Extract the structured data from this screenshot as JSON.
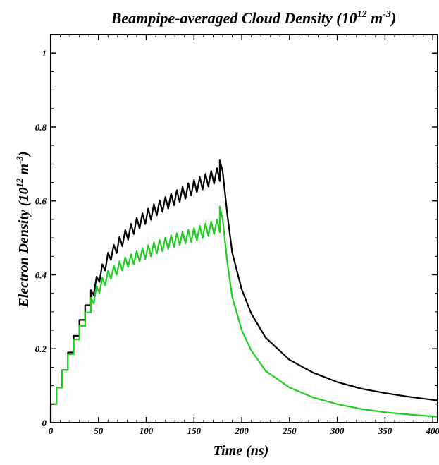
{
  "chart_data": {
    "type": "line",
    "title": {
      "main": "Beampipe-averaged Cloud Density (10",
      "sup1": "12",
      "mid": " m",
      "sup2": "-3",
      "end": ")"
    },
    "xlabel": "Time (ns)",
    "ylabel": {
      "main": "Electron Density (10",
      "sup1": "12",
      "mid": " m",
      "sup2": "-3",
      "end": ")"
    },
    "xlim": [
      0,
      405
    ],
    "ylim": [
      0,
      1.05
    ],
    "x_ticks": [
      0,
      50,
      100,
      150,
      200,
      250,
      300,
      350,
      400
    ],
    "y_ticks": [
      0,
      0.2,
      0.4,
      0.6,
      0.8,
      1
    ],
    "x_tick_labels": [
      "0",
      "50",
      "100",
      "150",
      "200",
      "250",
      "300",
      "350",
      "400"
    ],
    "y_tick_labels": [
      "0",
      "0.2",
      "0.4",
      "0.6",
      "0.8",
      "1"
    ],
    "grid": false,
    "series": [
      {
        "color": "#000000",
        "bunch_spacing_ns": 6,
        "fill_end_ns": 177,
        "envelope": [
          [
            0,
            0.05
          ],
          [
            6,
            0.095
          ],
          [
            12,
            0.143
          ],
          [
            18,
            0.19
          ],
          [
            24,
            0.235
          ],
          [
            30,
            0.278
          ],
          [
            36,
            0.318
          ],
          [
            42,
            0.352
          ],
          [
            50,
            0.4
          ],
          [
            60,
            0.45
          ],
          [
            75,
            0.5
          ],
          [
            90,
            0.54
          ],
          [
            110,
            0.58
          ],
          [
            130,
            0.61
          ],
          [
            150,
            0.64
          ],
          [
            165,
            0.66
          ],
          [
            177,
            0.675
          ]
        ],
        "ripple": [
          [
            30,
            0.01
          ],
          [
            50,
            0.015
          ],
          [
            70,
            0.025
          ],
          [
            100,
            0.03
          ],
          [
            177,
            0.035
          ]
        ],
        "decay": [
          [
            177,
            0.71
          ],
          [
            180,
            0.68
          ],
          [
            185,
            0.56
          ],
          [
            190,
            0.46
          ],
          [
            200,
            0.36
          ],
          [
            210,
            0.295
          ],
          [
            225,
            0.23
          ],
          [
            250,
            0.17
          ],
          [
            275,
            0.135
          ],
          [
            300,
            0.11
          ],
          [
            325,
            0.092
          ],
          [
            350,
            0.08
          ],
          [
            375,
            0.07
          ],
          [
            405,
            0.06
          ]
        ]
      },
      {
        "color": "#22cc22",
        "bunch_spacing_ns": 6,
        "fill_end_ns": 177,
        "envelope": [
          [
            0,
            0.05
          ],
          [
            6,
            0.095
          ],
          [
            12,
            0.143
          ],
          [
            18,
            0.185
          ],
          [
            24,
            0.225
          ],
          [
            30,
            0.262
          ],
          [
            36,
            0.298
          ],
          [
            42,
            0.33
          ],
          [
            50,
            0.37
          ],
          [
            60,
            0.4
          ],
          [
            75,
            0.43
          ],
          [
            90,
            0.45
          ],
          [
            110,
            0.475
          ],
          [
            130,
            0.495
          ],
          [
            150,
            0.51
          ],
          [
            165,
            0.525
          ],
          [
            177,
            0.535
          ]
        ],
        "ripple": [
          [
            30,
            0.01
          ],
          [
            50,
            0.02
          ],
          [
            70,
            0.025
          ],
          [
            100,
            0.03
          ],
          [
            177,
            0.035
          ]
        ],
        "decay": [
          [
            177,
            0.585
          ],
          [
            180,
            0.55
          ],
          [
            185,
            0.43
          ],
          [
            190,
            0.34
          ],
          [
            200,
            0.25
          ],
          [
            210,
            0.195
          ],
          [
            225,
            0.14
          ],
          [
            250,
            0.095
          ],
          [
            275,
            0.068
          ],
          [
            300,
            0.05
          ],
          [
            325,
            0.037
          ],
          [
            350,
            0.028
          ],
          [
            375,
            0.022
          ],
          [
            405,
            0.016
          ]
        ]
      }
    ]
  }
}
